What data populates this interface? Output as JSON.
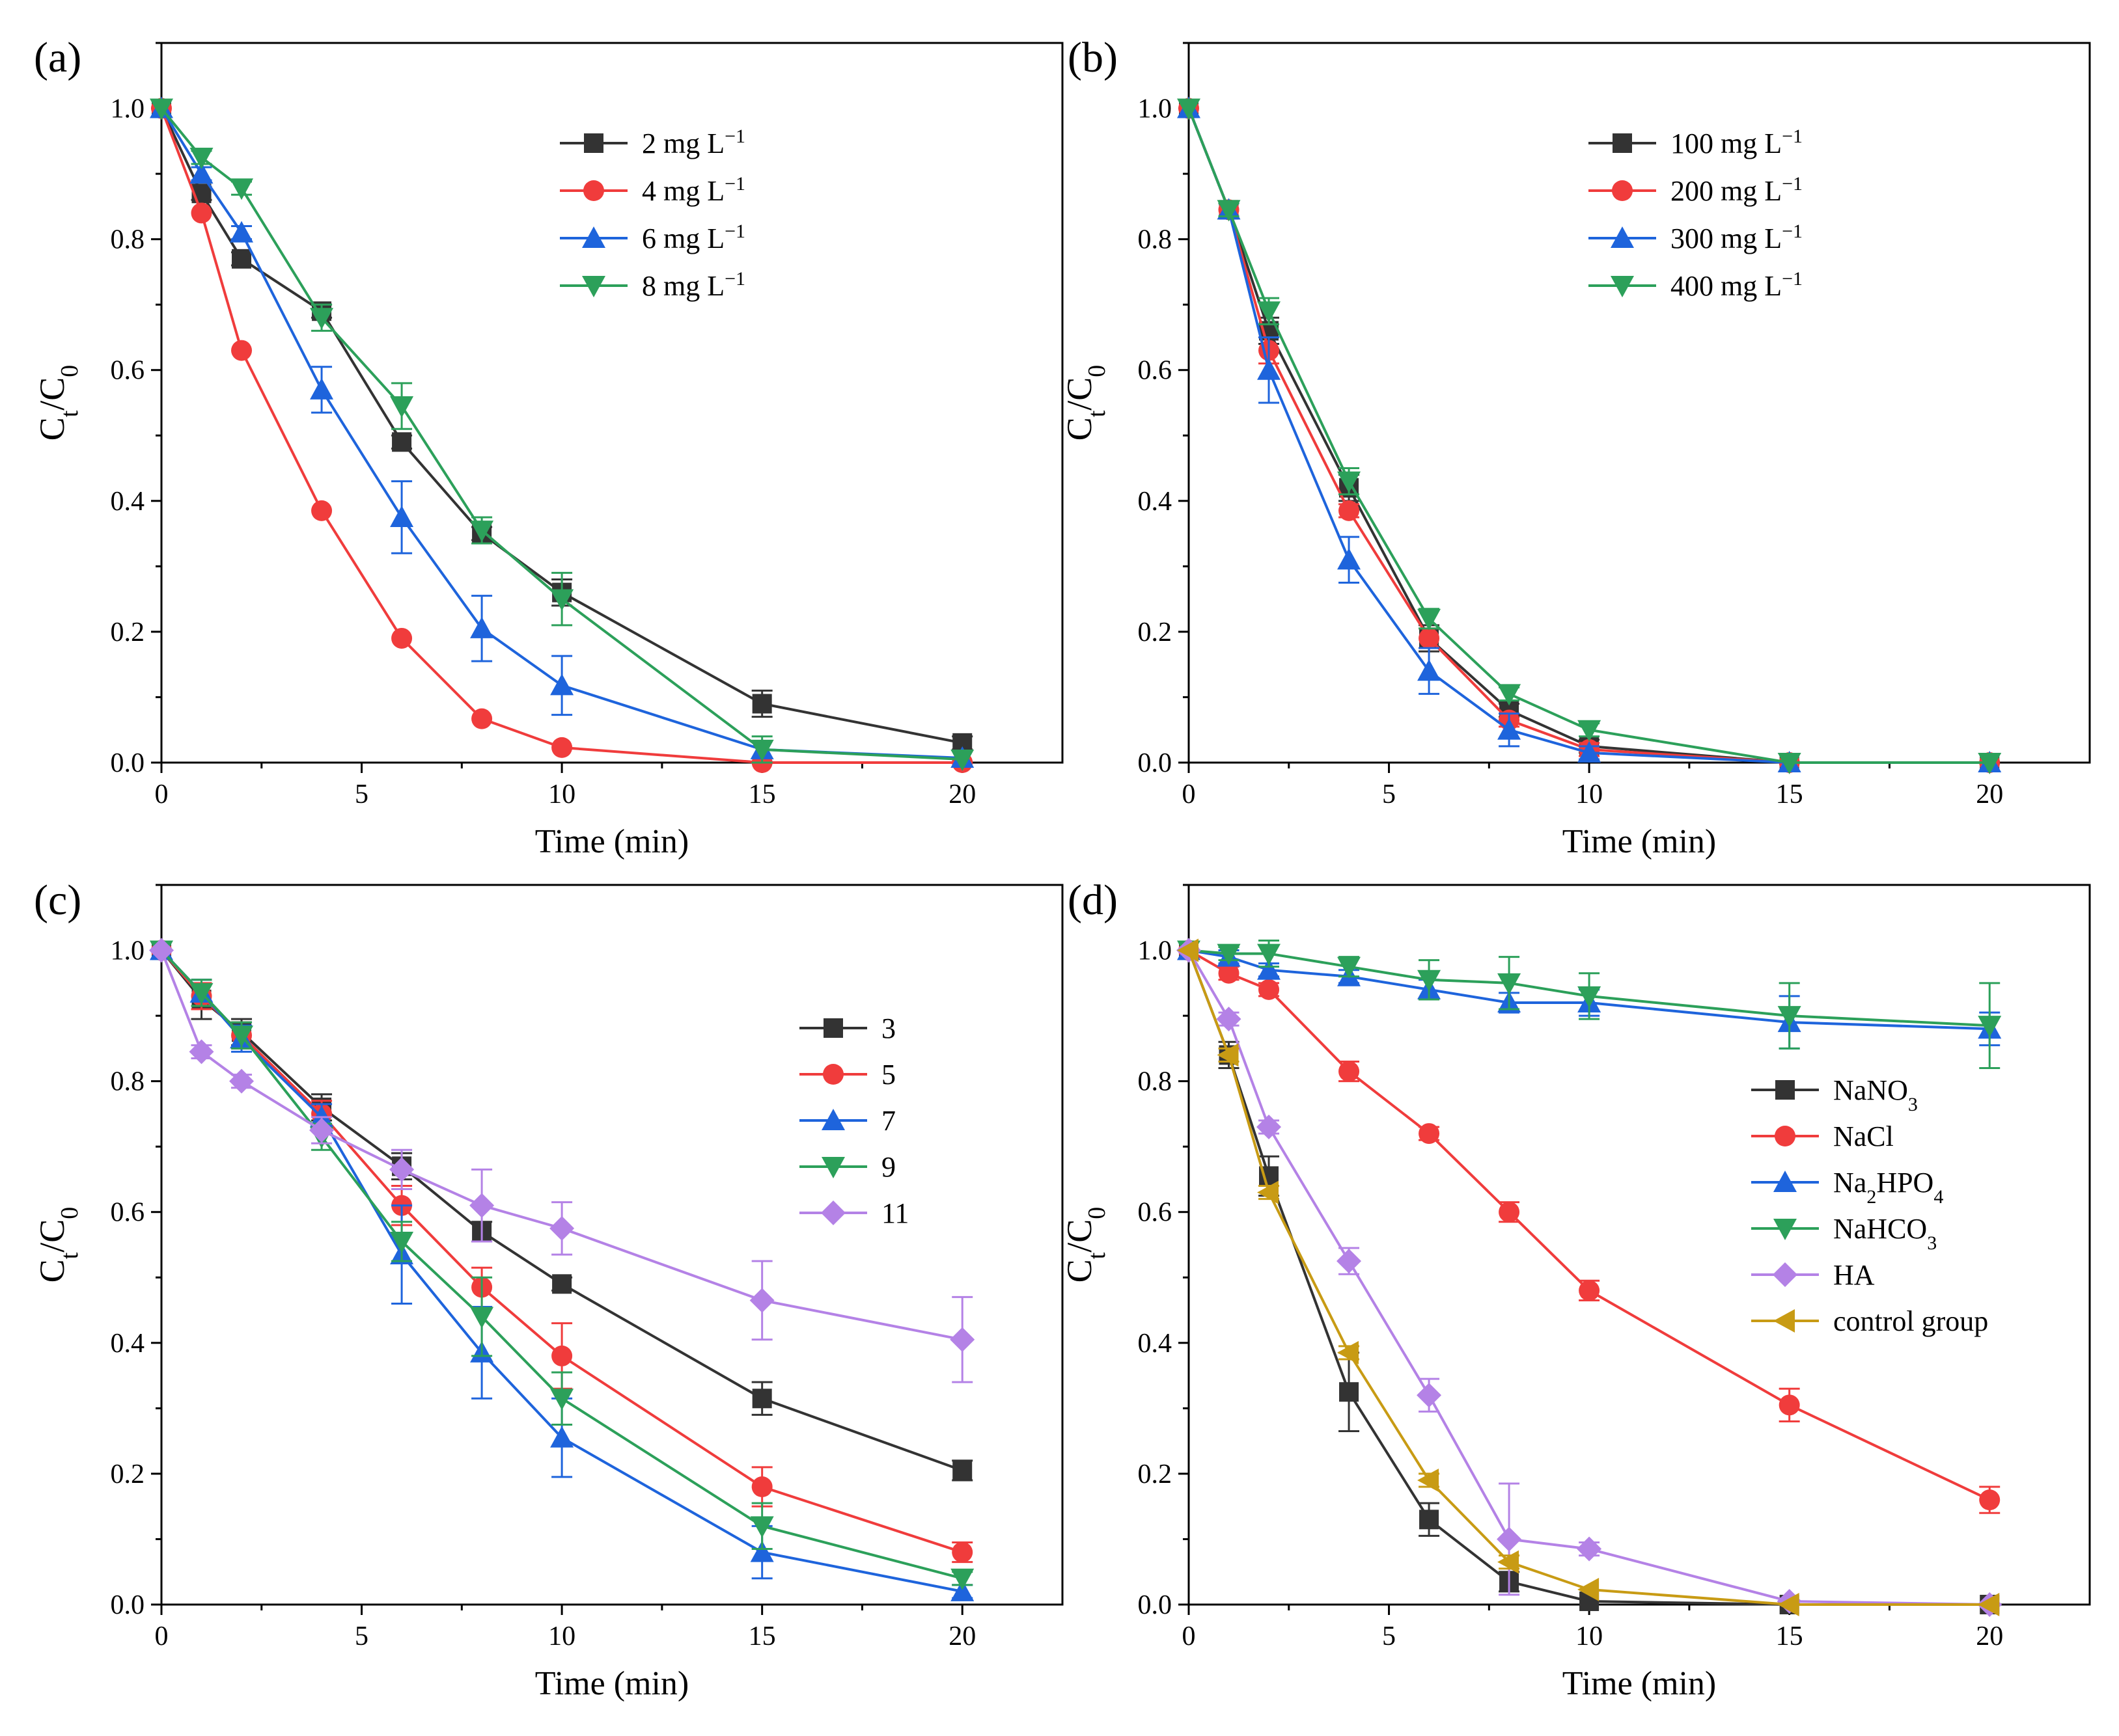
{
  "figure": {
    "xlabel": "Time (min)",
    "ylabel_main": "C",
    "ylabel_sub1": "t",
    "ylabel_sep": "/C",
    "ylabel_sub2": "0"
  },
  "colors": {
    "black": "#333333",
    "red": "#f03c3c",
    "blue": "#1e64dc",
    "green": "#2ca05a",
    "purple": "#b482e6",
    "gold": "#c89b14"
  },
  "chart_data": [
    {
      "panel": "(a)",
      "type": "line",
      "xlim": [
        0,
        22.5
      ],
      "ylim": [
        0,
        1.1
      ],
      "xticks": [
        0,
        5,
        10,
        15,
        20
      ],
      "yticks": [
        0.0,
        0.2,
        0.4,
        0.6,
        0.8,
        1.0
      ],
      "xlabel": "Time (min)",
      "legend": "top-center",
      "x": [
        0,
        1,
        2,
        4,
        6,
        8,
        10,
        15,
        20
      ],
      "series": [
        {
          "name": "2 mg L",
          "sup": "−1",
          "marker": "square",
          "color": "#333333",
          "values": [
            1.0,
            0.87,
            0.77,
            0.69,
            0.49,
            0.35,
            0.26,
            0.09,
            0.03
          ],
          "errors": [
            0.005,
            0.01,
            0.01,
            0.01,
            0.01,
            0.01,
            0.02,
            0.02,
            0.01
          ]
        },
        {
          "name": "4 mg L",
          "sup": "−1",
          "marker": "circle",
          "color": "#f03c3c",
          "values": [
            1.0,
            0.84,
            0.63,
            0.385,
            0.19,
            0.067,
            0.023,
            0.0,
            0.0
          ],
          "errors": [
            0.005,
            0.005,
            0.005,
            0.005,
            0.005,
            0.005,
            0.005,
            0.0,
            0.0
          ]
        },
        {
          "name": "6 mg L",
          "sup": "−1",
          "marker": "triangle-up",
          "color": "#1e64dc",
          "values": [
            1.0,
            0.9,
            0.81,
            0.57,
            0.375,
            0.205,
            0.118,
            0.02,
            0.007
          ],
          "errors": [
            0.005,
            0.01,
            0.01,
            0.035,
            0.055,
            0.05,
            0.045,
            0.005,
            0.005
          ]
        },
        {
          "name": "8 mg L",
          "sup": "−1",
          "marker": "triangle-down",
          "color": "#2ca05a",
          "values": [
            1.0,
            0.925,
            0.878,
            0.68,
            0.545,
            0.355,
            0.25,
            0.02,
            0.005
          ],
          "errors": [
            0.005,
            0.01,
            0.01,
            0.02,
            0.035,
            0.02,
            0.04,
            0.02,
            0.005
          ]
        }
      ]
    },
    {
      "panel": "(b)",
      "type": "line",
      "xlim": [
        0,
        22.5
      ],
      "ylim": [
        0,
        1.1
      ],
      "xticks": [
        0,
        5,
        10,
        15,
        20
      ],
      "yticks": [
        0.0,
        0.2,
        0.4,
        0.6,
        0.8,
        1.0
      ],
      "xlabel": "Time (min)",
      "legend": "top-center",
      "x": [
        0,
        1,
        2,
        4,
        6,
        8,
        10,
        15,
        20
      ],
      "series": [
        {
          "name": "100 mg L",
          "sup": "−1",
          "marker": "square",
          "color": "#333333",
          "values": [
            1.0,
            0.845,
            0.66,
            0.42,
            0.19,
            0.08,
            0.025,
            0.0,
            0.0
          ],
          "errors": [
            0.005,
            0.01,
            0.02,
            0.02,
            0.02,
            0.01,
            0.01,
            0.0,
            0.0
          ]
        },
        {
          "name": "200 mg L",
          "sup": "−1",
          "marker": "circle",
          "color": "#f03c3c",
          "values": [
            1.0,
            0.845,
            0.63,
            0.385,
            0.19,
            0.065,
            0.02,
            0.0,
            0.0
          ],
          "errors": [
            0.005,
            0.01,
            0.02,
            0.01,
            0.015,
            0.01,
            0.01,
            0.0,
            0.0
          ]
        },
        {
          "name": "300 mg L",
          "sup": "−1",
          "marker": "triangle-up",
          "color": "#1e64dc",
          "values": [
            1.0,
            0.845,
            0.6,
            0.31,
            0.14,
            0.05,
            0.015,
            0.0,
            0.0
          ],
          "errors": [
            0.005,
            0.01,
            0.05,
            0.035,
            0.035,
            0.025,
            0.01,
            0.0,
            0.0
          ]
        },
        {
          "name": "400 mg L",
          "sup": "−1",
          "marker": "triangle-down",
          "color": "#2ca05a",
          "values": [
            1.0,
            0.845,
            0.69,
            0.43,
            0.22,
            0.105,
            0.05,
            0.0,
            0.0
          ],
          "errors": [
            0.005,
            0.01,
            0.02,
            0.02,
            0.015,
            0.01,
            0.01,
            0.0,
            0.0
          ]
        }
      ]
    },
    {
      "panel": "(c)",
      "type": "line",
      "xlim": [
        0,
        22.5
      ],
      "ylim": [
        0,
        1.1
      ],
      "xticks": [
        0,
        5,
        10,
        15,
        20
      ],
      "yticks": [
        0.0,
        0.2,
        0.4,
        0.6,
        0.8,
        1.0
      ],
      "xlabel": "Time (min)",
      "legend": "right",
      "x": [
        0,
        1,
        2,
        4,
        6,
        8,
        10,
        15,
        20
      ],
      "series": [
        {
          "name": "3",
          "sup": "",
          "marker": "square",
          "color": "#333333",
          "values": [
            1.0,
            0.925,
            0.875,
            0.76,
            0.67,
            0.57,
            0.49,
            0.315,
            0.205
          ],
          "errors": [
            0.005,
            0.03,
            0.02,
            0.02,
            0.02,
            0.015,
            0.01,
            0.025,
            0.015
          ]
        },
        {
          "name": "5",
          "sup": "",
          "marker": "circle",
          "color": "#f03c3c",
          "values": [
            1.0,
            0.93,
            0.87,
            0.75,
            0.61,
            0.485,
            0.38,
            0.18,
            0.08
          ],
          "errors": [
            0.005,
            0.02,
            0.02,
            0.02,
            0.03,
            0.03,
            0.05,
            0.03,
            0.015
          ]
        },
        {
          "name": "7",
          "sup": "",
          "marker": "triangle-up",
          "color": "#1e64dc",
          "values": [
            1.0,
            0.935,
            0.865,
            0.745,
            0.535,
            0.385,
            0.255,
            0.08,
            0.02
          ],
          "errors": [
            0.005,
            0.02,
            0.02,
            0.02,
            0.075,
            0.07,
            0.06,
            0.04,
            0.01
          ]
        },
        {
          "name": "9",
          "sup": "",
          "marker": "triangle-down",
          "color": "#2ca05a",
          "values": [
            1.0,
            0.935,
            0.87,
            0.715,
            0.555,
            0.44,
            0.315,
            0.12,
            0.04
          ],
          "errors": [
            0.005,
            0.02,
            0.02,
            0.02,
            0.03,
            0.06,
            0.04,
            0.035,
            0.01
          ]
        },
        {
          "name": "11",
          "sup": "",
          "marker": "diamond",
          "color": "#b482e6",
          "values": [
            1.0,
            0.845,
            0.8,
            0.725,
            0.665,
            0.61,
            0.575,
            0.465,
            0.405
          ],
          "errors": [
            0.005,
            0.01,
            0.01,
            0.02,
            0.03,
            0.055,
            0.04,
            0.06,
            0.065
          ]
        }
      ]
    },
    {
      "panel": "(d)",
      "type": "line",
      "xlim": [
        0,
        22.5
      ],
      "ylim": [
        0,
        1.1
      ],
      "xticks": [
        0,
        5,
        10,
        15,
        20
      ],
      "yticks": [
        0.0,
        0.2,
        0.4,
        0.6,
        0.8,
        1.0
      ],
      "xlabel": "Time (min)",
      "legend": "right",
      "x": [
        0,
        1,
        2,
        4,
        6,
        8,
        10,
        15,
        20
      ],
      "series": [
        {
          "name": "NaNO",
          "sub": "3",
          "tail": "",
          "marker": "square",
          "color": "#333333",
          "values": [
            1.0,
            0.84,
            0.655,
            0.325,
            0.13,
            0.035,
            0.005,
            0.0,
            0.0
          ],
          "errors": [
            0.005,
            0.02,
            0.03,
            0.06,
            0.025,
            0.015,
            0.005,
            0.0,
            0.0
          ]
        },
        {
          "name": "NaCl",
          "sub": "",
          "tail": "",
          "marker": "circle",
          "color": "#f03c3c",
          "values": [
            1.0,
            0.965,
            0.94,
            0.815,
            0.72,
            0.6,
            0.48,
            0.305,
            0.16
          ],
          "errors": [
            0.005,
            0.01,
            0.01,
            0.015,
            0.01,
            0.015,
            0.015,
            0.025,
            0.02
          ]
        },
        {
          "name": "Na",
          "sub": "2",
          "tail": "HPO",
          "sub2": "4",
          "marker": "triangle-up",
          "color": "#1e64dc",
          "values": [
            1.0,
            0.99,
            0.97,
            0.96,
            0.94,
            0.92,
            0.92,
            0.89,
            0.88
          ],
          "errors": [
            0.005,
            0.01,
            0.01,
            0.01,
            0.015,
            0.015,
            0.02,
            0.04,
            0.025
          ]
        },
        {
          "name": "NaHCO",
          "sub": "3",
          "tail": "",
          "marker": "triangle-down",
          "color": "#2ca05a",
          "values": [
            1.0,
            0.995,
            0.995,
            0.975,
            0.955,
            0.95,
            0.93,
            0.9,
            0.885
          ],
          "errors": [
            0.005,
            0.01,
            0.02,
            0.015,
            0.03,
            0.04,
            0.035,
            0.05,
            0.065
          ]
        },
        {
          "name": "HA",
          "sub": "",
          "tail": "",
          "marker": "diamond",
          "color": "#b482e6",
          "values": [
            1.0,
            0.895,
            0.73,
            0.525,
            0.32,
            0.1,
            0.085,
            0.005,
            0.0
          ],
          "errors": [
            0.005,
            0.01,
            0.01,
            0.02,
            0.025,
            0.085,
            0.01,
            0.005,
            0.0
          ]
        },
        {
          "name": "control group",
          "sub": "",
          "tail": "",
          "marker": "triangle-left",
          "color": "#c89b14",
          "values": [
            1.0,
            0.84,
            0.63,
            0.385,
            0.19,
            0.065,
            0.023,
            0.0,
            0.0
          ],
          "errors": [
            0.005,
            0.01,
            0.01,
            0.01,
            0.01,
            0.01,
            0.005,
            0.0,
            0.0
          ]
        }
      ]
    }
  ]
}
